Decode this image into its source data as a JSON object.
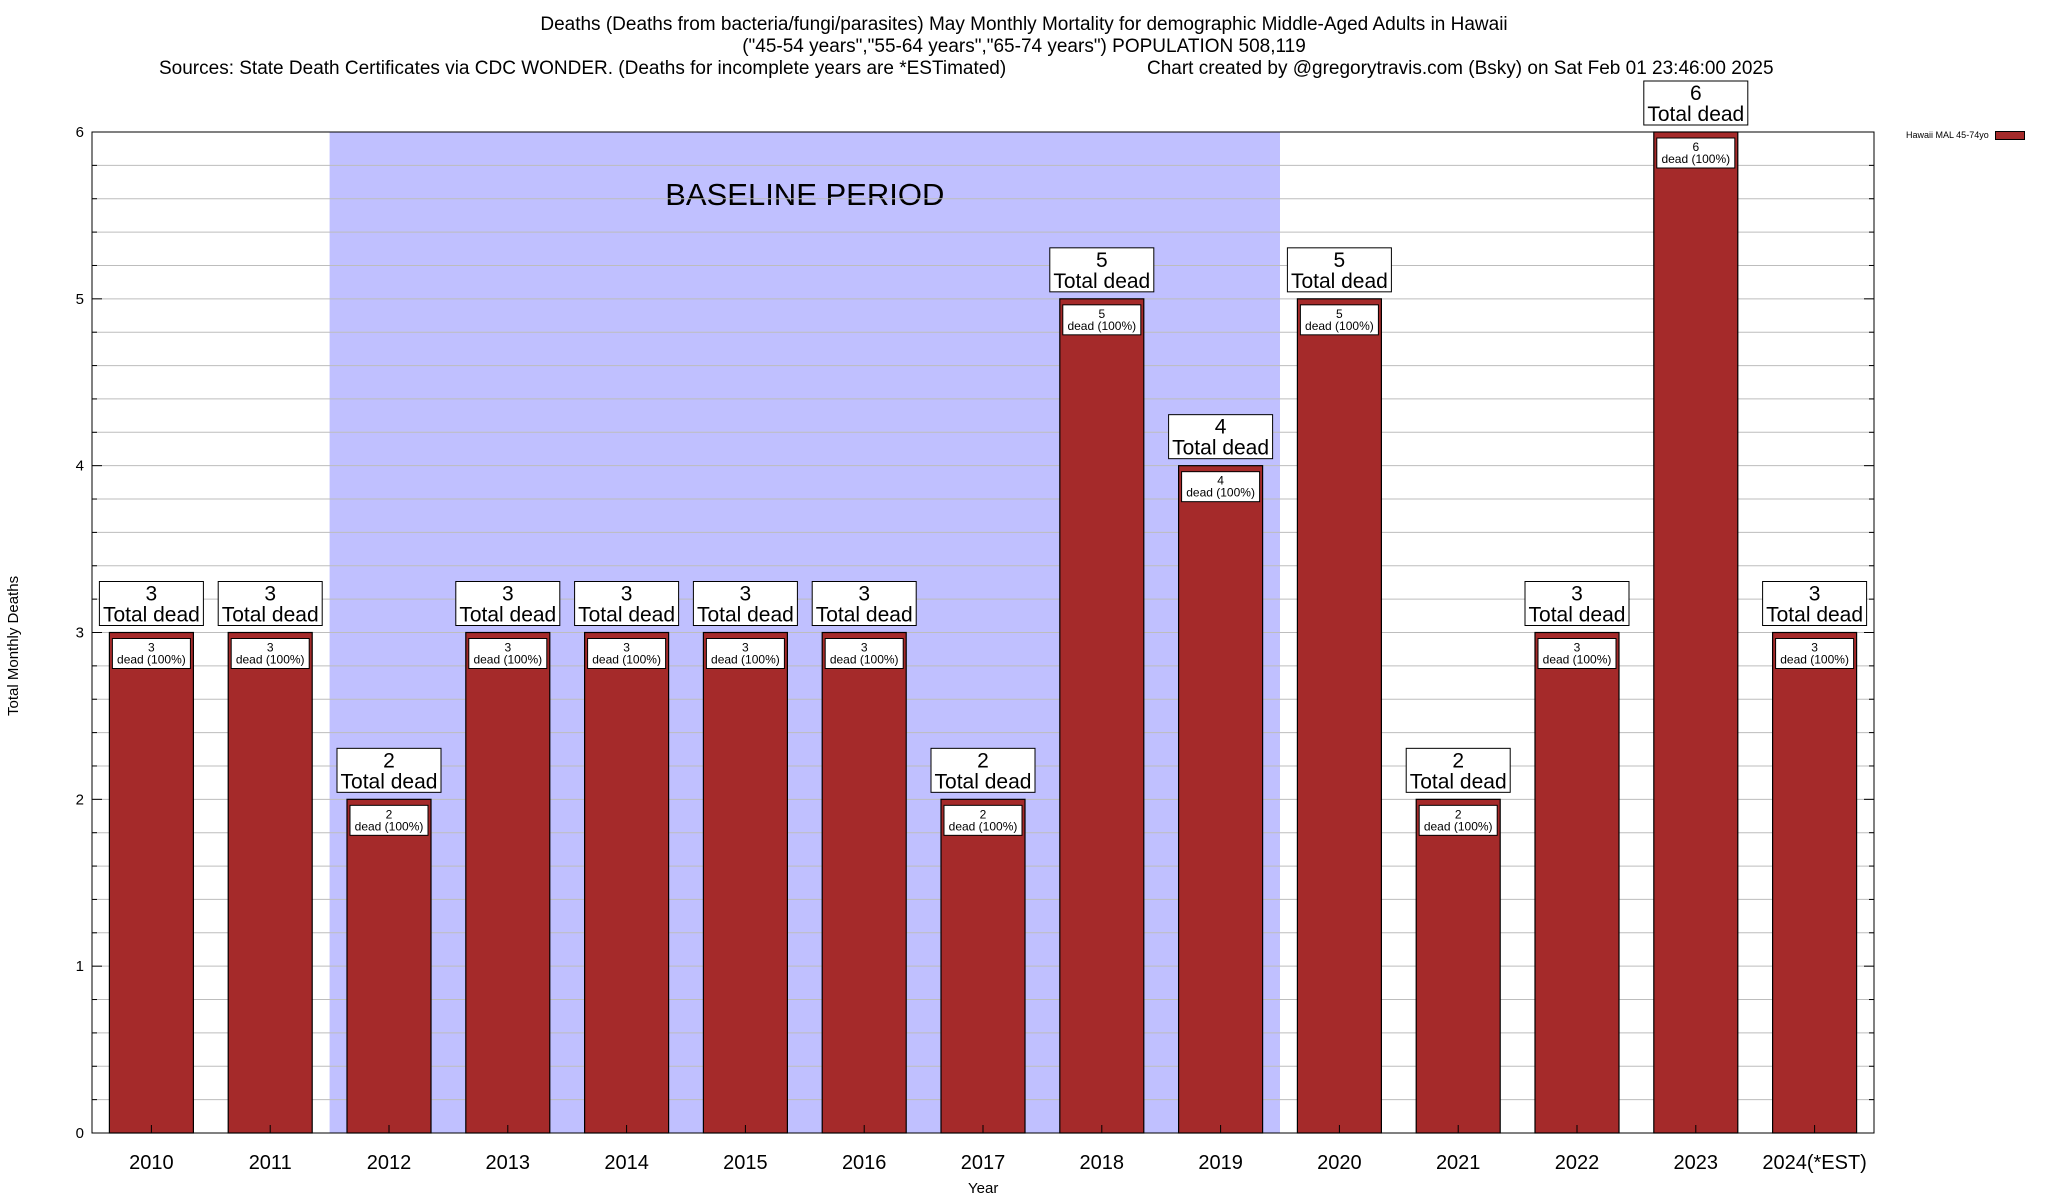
{
  "header": {
    "title_line1": "Deaths (Deaths from bacteria/fungi/parasites) May Monthly Mortality for demographic Middle-Aged Adults in Hawaii",
    "title_line2": "(\"45-54 years\",\"55-64 years\",\"65-74 years\") POPULATION 508,119",
    "sources": "Sources: State Death Certificates via CDC WONDER. (Deaths for incomplete years are *ESTimated)",
    "credit": "Chart created by @gregorytravis.com (Bsky) on Sat Feb 01 23:46:00 2025"
  },
  "colors": {
    "bar": "#a52a2a",
    "baseline_band": "#c0c0ff",
    "grid": "#bdbdbd"
  },
  "chart_data": {
    "type": "bar",
    "xlabel": "Year",
    "ylabel": "Total Monthly Deaths",
    "ylim": [
      0,
      6
    ],
    "yticks": [
      0,
      1,
      2,
      3,
      4,
      5,
      6
    ],
    "grid": true,
    "legend_position": "top-right",
    "categories": [
      "2010",
      "2011",
      "2012",
      "2013",
      "2014",
      "2015",
      "2016",
      "2017",
      "2018",
      "2019",
      "2020",
      "2021",
      "2022",
      "2023",
      "2024(*EST)"
    ],
    "series": [
      {
        "name": "Hawaii MAL 45-74yo",
        "values": [
          3,
          3,
          2,
          3,
          3,
          3,
          3,
          2,
          5,
          4,
          5,
          2,
          3,
          6,
          3
        ]
      }
    ],
    "top_label_suffix": "Total dead",
    "inner_label_suffix": "dead (100%)",
    "baseline": {
      "label": "BASELINE PERIOD",
      "from": "2012",
      "to": "2019"
    }
  }
}
